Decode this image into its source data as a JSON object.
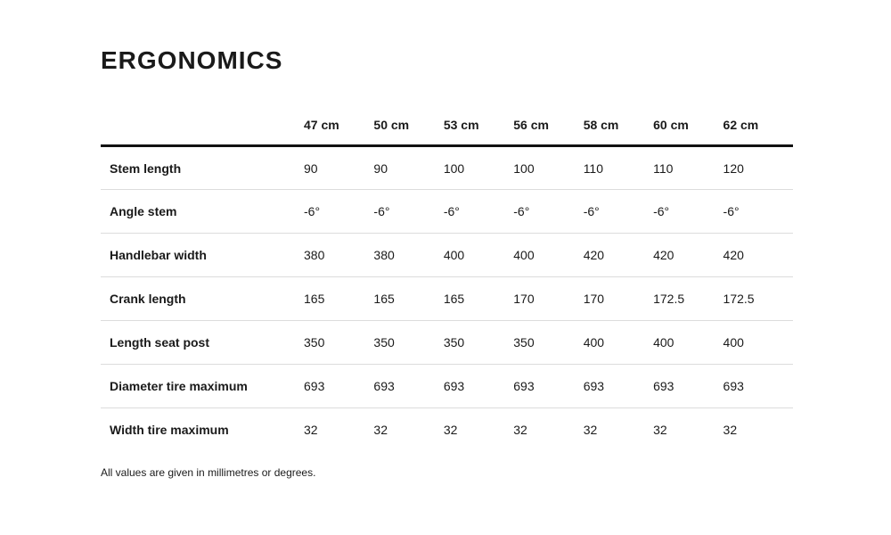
{
  "page": {
    "title": "ERGONOMICS",
    "footnote": "All values are given in millimetres or degrees."
  },
  "table": {
    "columns": [
      "47 cm",
      "50 cm",
      "53 cm",
      "56 cm",
      "58 cm",
      "60 cm",
      "62 cm"
    ],
    "rows": [
      {
        "label": "Stem length",
        "values": [
          "90",
          "90",
          "100",
          "100",
          "110",
          "110",
          "120"
        ]
      },
      {
        "label": "Angle stem",
        "values": [
          "-6°",
          "-6°",
          "-6°",
          "-6°",
          "-6°",
          "-6°",
          "-6°"
        ]
      },
      {
        "label": "Handlebar width",
        "values": [
          "380",
          "380",
          "400",
          "400",
          "420",
          "420",
          "420"
        ]
      },
      {
        "label": "Crank length",
        "values": [
          "165",
          "165",
          "165",
          "170",
          "170",
          "172.5",
          "172.5"
        ]
      },
      {
        "label": "Length seat post",
        "values": [
          "350",
          "350",
          "350",
          "350",
          "400",
          "400",
          "400"
        ]
      },
      {
        "label": "Diameter tire maximum",
        "values": [
          "693",
          "693",
          "693",
          "693",
          "693",
          "693",
          "693"
        ]
      },
      {
        "label": "Width tire maximum",
        "values": [
          "32",
          "32",
          "32",
          "32",
          "32",
          "32",
          "32"
        ]
      }
    ]
  },
  "colors": {
    "text": "#1a1a1a",
    "header_border": "#111111",
    "row_border": "#dcdcdc",
    "background": "#ffffff"
  }
}
